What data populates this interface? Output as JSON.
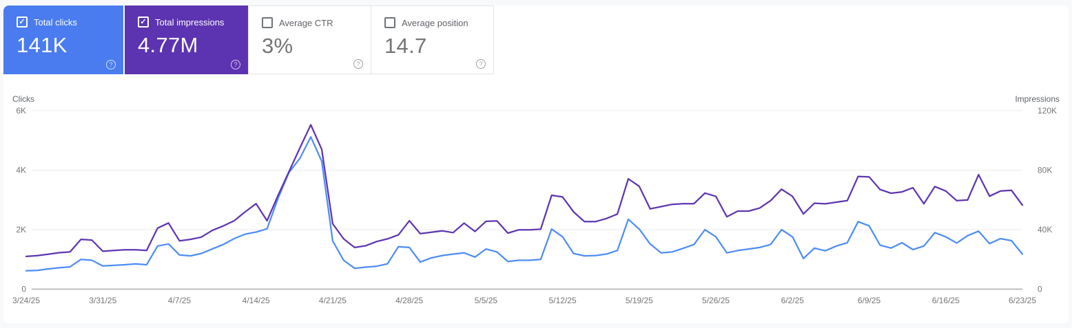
{
  "cards": [
    {
      "id": "total-clicks",
      "label": "Total clicks",
      "value": "141K",
      "checked": true,
      "bg": "#4a7cf0",
      "fg": "#ffffff"
    },
    {
      "id": "total-impressions",
      "label": "Total impressions",
      "value": "4.77M",
      "checked": true,
      "bg": "#5c33b0",
      "fg": "#ffffff"
    },
    {
      "id": "average-ctr",
      "label": "Average CTR",
      "value": "3%",
      "checked": false,
      "bg": "#ffffff",
      "fg": "#757575"
    },
    {
      "id": "average-position",
      "label": "Average position",
      "value": "14.7",
      "checked": false,
      "bg": "#ffffff",
      "fg": "#757575"
    }
  ],
  "help_icon_glyph": "?",
  "checkbox_check_glyph": "✓",
  "chart_data": {
    "type": "line",
    "x_start": "3/24/25",
    "x_end": "6/23/25",
    "frequency": "daily",
    "x_ticks": [
      "3/24/25",
      "3/31/25",
      "4/7/25",
      "4/14/25",
      "4/21/25",
      "4/28/25",
      "5/5/25",
      "5/12/25",
      "5/19/25",
      "5/26/25",
      "6/2/25",
      "6/9/25",
      "6/16/25",
      "6/23/25"
    ],
    "left_axis": {
      "label": "Clicks",
      "max": 6000,
      "ticks": [
        {
          "v": 0,
          "t": "0"
        },
        {
          "v": 2000,
          "t": "2K"
        },
        {
          "v": 4000,
          "t": "4K"
        },
        {
          "v": 6000,
          "t": "6K"
        }
      ]
    },
    "right_axis": {
      "label": "Impressions",
      "max": 120000,
      "ticks": [
        {
          "v": 0,
          "t": "0"
        },
        {
          "v": 40000,
          "t": "40K"
        },
        {
          "v": 80000,
          "t": "80K"
        },
        {
          "v": 120000,
          "t": "120K"
        }
      ]
    },
    "series": [
      {
        "name": "Clicks",
        "axis": "left",
        "color": "#4d8df6",
        "values": [
          620,
          630,
          680,
          720,
          750,
          1000,
          970,
          780,
          800,
          820,
          850,
          820,
          1450,
          1520,
          1150,
          1120,
          1200,
          1350,
          1500,
          1700,
          1850,
          1920,
          2030,
          3050,
          3920,
          4400,
          5120,
          4300,
          1620,
          970,
          700,
          740,
          770,
          850,
          1430,
          1400,
          910,
          1050,
          1130,
          1180,
          1220,
          1080,
          1350,
          1250,
          930,
          970,
          970,
          1000,
          2020,
          1760,
          1200,
          1120,
          1130,
          1180,
          1300,
          2350,
          2020,
          1520,
          1220,
          1250,
          1370,
          1500,
          2000,
          1760,
          1220,
          1300,
          1350,
          1400,
          1500,
          2000,
          1760,
          1030,
          1380,
          1290,
          1450,
          1560,
          2270,
          2130,
          1480,
          1380,
          1560,
          1330,
          1450,
          1900,
          1760,
          1550,
          1800,
          1950,
          1530,
          1700,
          1630,
          1180
        ]
      },
      {
        "name": "Impressions",
        "axis": "right",
        "color": "#5e35b1",
        "values": [
          22000,
          22500,
          23500,
          24500,
          25000,
          33500,
          33000,
          25500,
          26000,
          26500,
          26500,
          26000,
          41000,
          44500,
          32500,
          33500,
          35000,
          39500,
          42500,
          46000,
          52000,
          57500,
          46000,
          63000,
          79000,
          95000,
          110500,
          94000,
          44000,
          33800,
          28000,
          29200,
          32000,
          33800,
          36500,
          46000,
          37300,
          38300,
          39200,
          38000,
          44400,
          38800,
          45600,
          45900,
          37700,
          39900,
          39900,
          40300,
          63100,
          62000,
          52000,
          45400,
          45400,
          47500,
          50500,
          74200,
          69200,
          54000,
          55500,
          57000,
          57500,
          57500,
          64600,
          62400,
          48700,
          52500,
          52500,
          54500,
          59500,
          67200,
          62400,
          50600,
          57800,
          57400,
          58500,
          59500,
          75800,
          75500,
          67000,
          64500,
          65400,
          68200,
          57400,
          69000,
          66000,
          59500,
          60000,
          77000,
          62500,
          66000,
          66500,
          56500
        ]
      }
    ],
    "grid_color": "#ebebeb",
    "zero_line_color": "#bdbdbd",
    "tick_text_color": "#757575",
    "axis_title_color": "#5f6368"
  }
}
